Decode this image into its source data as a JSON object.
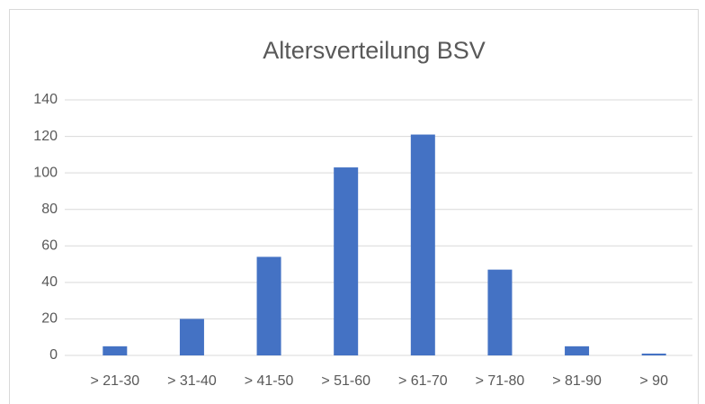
{
  "chart_data": {
    "type": "bar",
    "title": "Altersverteilung BSV",
    "categories": [
      "> 21-30",
      "> 31-40",
      "> 41-50",
      "> 51-60",
      "> 61-70",
      "> 71-80",
      "> 81-90",
      "> 90"
    ],
    "values": [
      5,
      20,
      54,
      103,
      121,
      47,
      5,
      1
    ],
    "color": "#4472c4",
    "ylim": [
      0,
      140
    ],
    "yticks": [
      0,
      20,
      40,
      60,
      80,
      100,
      120,
      140
    ],
    "grid": true
  }
}
